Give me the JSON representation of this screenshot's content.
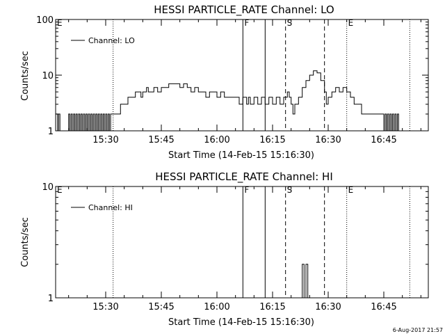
{
  "chart_data": [
    {
      "type": "line",
      "title": "HESSI PARTICLE_RATE Channel: LO",
      "xlabel": "Start Time (14-Feb-15 15:16:30)",
      "ylabel": "Counts/sec",
      "xlim": [
        "15:16:30",
        "16:57:00"
      ],
      "ylim": [
        1,
        100
      ],
      "yscale": "log",
      "x_ticks": [
        "15:30",
        "15:45",
        "16:00",
        "16:15",
        "16:30",
        "16:45"
      ],
      "y_ticks": [
        "1",
        "10",
        "100"
      ],
      "legend": "top-left",
      "series": [
        {
          "name": "Channel: LO",
          "points": [
            [
              "15:16:30",
              2
            ],
            [
              "15:17:00",
              1
            ],
            [
              "15:17:20",
              2
            ],
            [
              "15:17:40",
              1
            ],
            [
              "15:19:30",
              1
            ],
            [
              "15:20:00",
              2
            ],
            [
              "15:20:20",
              1
            ],
            [
              "15:20:40",
              2
            ],
            [
              "15:21:00",
              1
            ],
            [
              "15:21:20",
              2
            ],
            [
              "15:21:40",
              1
            ],
            [
              "15:22:00",
              2
            ],
            [
              "15:22:20",
              1
            ],
            [
              "15:22:40",
              2
            ],
            [
              "15:23:00",
              1
            ],
            [
              "15:23:20",
              2
            ],
            [
              "15:23:40",
              1
            ],
            [
              "15:24:00",
              2
            ],
            [
              "15:24:20",
              1
            ],
            [
              "15:24:40",
              2
            ],
            [
              "15:25:00",
              1
            ],
            [
              "15:25:20",
              2
            ],
            [
              "15:25:40",
              1
            ],
            [
              "15:26:00",
              2
            ],
            [
              "15:26:20",
              1
            ],
            [
              "15:26:40",
              2
            ],
            [
              "15:27:00",
              1
            ],
            [
              "15:27:20",
              2
            ],
            [
              "15:27:40",
              1
            ],
            [
              "15:28:00",
              2
            ],
            [
              "15:28:20",
              1
            ],
            [
              "15:28:40",
              2
            ],
            [
              "15:29:00",
              1
            ],
            [
              "15:29:20",
              2
            ],
            [
              "15:29:40",
              1
            ],
            [
              "15:30:00",
              2
            ],
            [
              "15:30:20",
              1
            ],
            [
              "15:30:40",
              2
            ],
            [
              "15:31:00",
              1
            ],
            [
              "15:31:20",
              2
            ],
            [
              "15:32:00",
              2
            ],
            [
              "15:34:00",
              3
            ],
            [
              "15:36:00",
              4
            ],
            [
              "15:38:00",
              5
            ],
            [
              "15:39:00",
              5
            ],
            [
              "15:39:30",
              4
            ],
            [
              "15:40:00",
              5
            ],
            [
              "15:41:00",
              6
            ],
            [
              "15:41:30",
              5
            ],
            [
              "15:42:00",
              5
            ],
            [
              "15:43:00",
              6
            ],
            [
              "15:44:00",
              5
            ],
            [
              "15:45:00",
              6
            ],
            [
              "15:46:00",
              6
            ],
            [
              "15:47:00",
              7
            ],
            [
              "15:48:00",
              7
            ],
            [
              "15:49:00",
              7
            ],
            [
              "15:50:00",
              6
            ],
            [
              "15:51:00",
              7
            ],
            [
              "15:52:00",
              6
            ],
            [
              "15:53:00",
              5
            ],
            [
              "15:54:00",
              6
            ],
            [
              "15:55:00",
              5
            ],
            [
              "15:56:00",
              5
            ],
            [
              "15:57:00",
              4
            ],
            [
              "15:58:00",
              5
            ],
            [
              "15:59:00",
              5
            ],
            [
              "16:00:00",
              4
            ],
            [
              "16:01:00",
              5
            ],
            [
              "16:02:00",
              4
            ],
            [
              "16:03:00",
              4
            ],
            [
              "16:04:00",
              4
            ],
            [
              "16:05:00",
              4
            ],
            [
              "16:06:00",
              3
            ],
            [
              "16:07:00",
              4
            ],
            [
              "16:08:00",
              3
            ],
            [
              "16:08:30",
              4
            ],
            [
              "16:09:00",
              3
            ],
            [
              "16:10:00",
              4
            ],
            [
              "16:11:00",
              3
            ],
            [
              "16:12:00",
              4
            ],
            [
              "16:13:00",
              3
            ],
            [
              "16:14:00",
              4
            ],
            [
              "16:15:00",
              3
            ],
            [
              "16:16:00",
              4
            ],
            [
              "16:17:00",
              3
            ],
            [
              "16:18:00",
              4
            ],
            [
              "16:19:00",
              5
            ],
            [
              "16:19:30",
              4
            ],
            [
              "16:20:00",
              3
            ],
            [
              "16:20:30",
              2
            ],
            [
              "16:21:00",
              3
            ],
            [
              "16:22:00",
              4
            ],
            [
              "16:23:00",
              6
            ],
            [
              "16:24:00",
              8
            ],
            [
              "16:25:00",
              10
            ],
            [
              "16:26:00",
              12
            ],
            [
              "16:27:00",
              11
            ],
            [
              "16:28:00",
              8
            ],
            [
              "16:29:00",
              5
            ],
            [
              "16:29:30",
              3
            ],
            [
              "16:30:00",
              4
            ],
            [
              "16:31:00",
              5
            ],
            [
              "16:32:00",
              6
            ],
            [
              "16:33:00",
              5
            ],
            [
              "16:34:00",
              6
            ],
            [
              "16:35:00",
              5
            ],
            [
              "16:36:00",
              4
            ],
            [
              "16:37:00",
              3
            ],
            [
              "16:38:00",
              3
            ],
            [
              "16:39:00",
              2
            ],
            [
              "16:42:00",
              2
            ],
            [
              "16:44:00",
              2
            ],
            [
              "16:45:00",
              1
            ],
            [
              "16:45:20",
              2
            ],
            [
              "16:45:40",
              1
            ],
            [
              "16:46:00",
              2
            ],
            [
              "16:46:20",
              1
            ],
            [
              "16:46:40",
              2
            ],
            [
              "16:47:00",
              1
            ],
            [
              "16:47:20",
              2
            ],
            [
              "16:47:40",
              1
            ],
            [
              "16:48:00",
              2
            ],
            [
              "16:48:20",
              1
            ],
            [
              "16:48:40",
              2
            ],
            [
              "16:49:00",
              1
            ]
          ]
        }
      ],
      "markers": [
        {
          "label": "E",
          "time": "15:16:30",
          "style": "dotted"
        },
        {
          "label": "",
          "time": "15:32:00",
          "style": "dotted"
        },
        {
          "label": "F",
          "time": "16:07:00",
          "style": "solid"
        },
        {
          "label": "",
          "time": "16:13:00",
          "style": "solid"
        },
        {
          "label": "S",
          "time": "16:18:30",
          "style": "dashed"
        },
        {
          "label": "",
          "time": "16:29:00",
          "style": "dashed"
        },
        {
          "label": "E",
          "time": "16:35:00",
          "style": "dotted"
        },
        {
          "label": "",
          "time": "16:52:00",
          "style": "dotted"
        }
      ]
    },
    {
      "type": "line",
      "title": "HESSI PARTICLE_RATE Channel: HI",
      "xlabel": "Start Time (14-Feb-15 15:16:30)",
      "ylabel": "Counts/sec",
      "xlim": [
        "15:16:30",
        "16:57:00"
      ],
      "ylim": [
        1,
        10
      ],
      "yscale": "log",
      "x_ticks": [
        "15:30",
        "15:45",
        "16:00",
        "16:15",
        "16:30",
        "16:45"
      ],
      "y_ticks": [
        "1",
        "10"
      ],
      "legend": "top-left",
      "series": [
        {
          "name": "Channel: HI",
          "points": [
            [
              "16:22:30",
              1
            ],
            [
              "16:23:00",
              2
            ],
            [
              "16:23:30",
              1
            ],
            [
              "16:24:00",
              2
            ],
            [
              "16:24:30",
              1
            ]
          ]
        }
      ],
      "markers": [
        {
          "label": "E",
          "time": "15:16:30",
          "style": "dotted"
        },
        {
          "label": "",
          "time": "15:32:00",
          "style": "dotted"
        },
        {
          "label": "F",
          "time": "16:07:00",
          "style": "solid"
        },
        {
          "label": "",
          "time": "16:13:00",
          "style": "solid"
        },
        {
          "label": "S",
          "time": "16:18:30",
          "style": "dashed"
        },
        {
          "label": "",
          "time": "16:29:00",
          "style": "dashed"
        },
        {
          "label": "E",
          "time": "16:35:00",
          "style": "dotted"
        },
        {
          "label": "",
          "time": "16:52:00",
          "style": "dotted"
        }
      ]
    }
  ],
  "footer": {
    "timestamp": "6-Aug-2017 21:57"
  }
}
